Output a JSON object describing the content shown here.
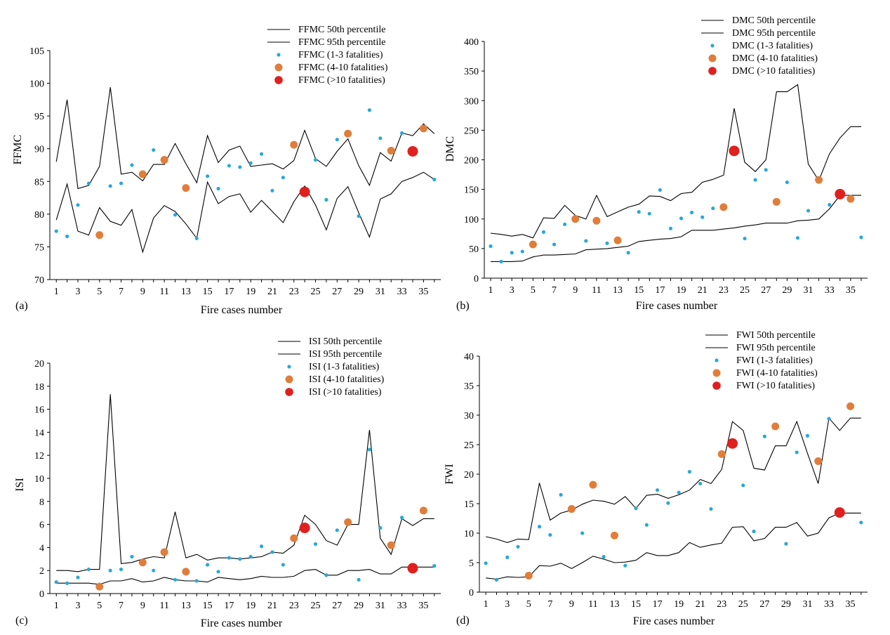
{
  "colors": {
    "p50": "#000000",
    "p95": "#000000",
    "small": "#2aa8d8",
    "medium": "#e07d3a",
    "large": "#e0201e",
    "axis": "#000000"
  },
  "chart_data": [
    {
      "panel": "(a)",
      "type": "line+scatter",
      "xlabel": "Fire cases number",
      "ylabel": "FFMC",
      "xlim": [
        1,
        36
      ],
      "ylim": [
        70,
        105
      ],
      "yticks": [
        70,
        75,
        80,
        85,
        90,
        95,
        100,
        105
      ],
      "xticks": [
        1,
        3,
        5,
        7,
        9,
        11,
        13,
        15,
        17,
        19,
        21,
        23,
        25,
        27,
        29,
        31,
        33,
        35
      ],
      "legend": [
        "FFMC 50th percentile",
        "FFMC 95th percentile",
        "FFMC (1-3 fatalities)",
        "FFMC (4-10 fatalities)",
        "FFMC (>10 fatalities)"
      ],
      "p50": [
        79.1,
        84.6,
        77.4,
        76.8,
        81.0,
        78.9,
        78.3,
        80.7,
        74.2,
        79.4,
        81.3,
        80.4,
        78.5,
        76.3,
        84.9,
        81.6,
        82.7,
        83.1,
        80.3,
        82.1,
        80.4,
        78.7,
        81.9,
        84.3,
        81.4,
        77.6,
        82.4,
        84.2,
        80.2,
        76.5,
        82.3,
        83.1,
        85.0,
        85.6,
        86.4,
        85.3
      ],
      "p95": [
        88.0,
        97.5,
        83.9,
        84.4,
        87.3,
        99.4,
        86.1,
        86.4,
        85.1,
        87.6,
        87.6,
        90.8,
        87.7,
        84.8,
        92.0,
        87.9,
        89.8,
        90.4,
        87.3,
        87.5,
        87.7,
        86.9,
        88.2,
        92.8,
        88.5,
        87.3,
        89.6,
        91.5,
        87.4,
        84.4,
        89.4,
        88.1,
        92.4,
        92.0,
        93.8,
        92.3
      ],
      "small": [
        [
          1,
          77.4
        ],
        [
          2,
          76.6
        ],
        [
          3,
          81.4
        ],
        [
          4,
          84.7
        ],
        [
          6,
          84.3
        ],
        [
          7,
          84.7
        ],
        [
          8,
          87.5
        ],
        [
          10,
          89.8
        ],
        [
          12,
          79.9
        ],
        [
          14,
          76.3
        ],
        [
          15,
          85.8
        ],
        [
          16,
          83.9
        ],
        [
          17,
          87.4
        ],
        [
          18,
          87.2
        ],
        [
          19,
          87.8
        ],
        [
          20,
          89.2
        ],
        [
          21,
          83.6
        ],
        [
          22,
          85.6
        ],
        [
          25,
          88.3
        ],
        [
          26,
          82.2
        ],
        [
          27,
          91.4
        ],
        [
          29,
          79.7
        ],
        [
          30,
          95.9
        ],
        [
          31,
          91.6
        ],
        [
          33,
          92.4
        ],
        [
          36,
          85.3
        ]
      ],
      "medium": [
        [
          5,
          76.8
        ],
        [
          9,
          86.1
        ],
        [
          11,
          88.3
        ],
        [
          13,
          84.0
        ],
        [
          23,
          90.6
        ],
        [
          28,
          92.3
        ],
        [
          32,
          89.7
        ],
        [
          35,
          93.1
        ]
      ],
      "large": [
        [
          24,
          83.4
        ],
        [
          34,
          89.6
        ]
      ]
    },
    {
      "panel": "(b)",
      "type": "line+scatter",
      "xlabel": "Fire cases number",
      "ylabel": "DMC",
      "xlim": [
        1,
        36
      ],
      "ylim": [
        0,
        400
      ],
      "yticks": [
        0,
        50,
        100,
        150,
        200,
        250,
        300,
        350,
        400
      ],
      "xticks": [
        1,
        3,
        5,
        7,
        9,
        11,
        13,
        15,
        17,
        19,
        21,
        23,
        25,
        27,
        29,
        31,
        33,
        35
      ],
      "legend": [
        "DMC 50th percentile",
        "DMC 95th percentile",
        "DMC (1-3 fatalities)",
        "DMC (4-10 fatalities)",
        "DMC (>10 fatalities)"
      ],
      "p50": [
        28,
        28,
        28,
        29,
        36,
        39,
        39,
        40,
        41,
        48,
        49,
        50,
        52,
        54,
        62,
        64,
        66,
        67,
        70,
        81,
        81,
        81,
        83,
        85,
        88,
        90,
        93,
        93,
        93,
        97,
        98,
        100,
        117,
        140,
        140,
        140
      ],
      "p95": [
        76,
        74,
        71,
        74,
        68,
        102,
        101,
        123,
        106,
        100,
        140,
        104,
        112,
        120,
        125,
        139,
        138,
        131,
        143,
        145,
        162,
        167,
        174,
        287,
        196,
        180,
        200,
        315,
        315,
        327,
        193,
        165,
        210,
        237,
        256,
        256
      ],
      "small": [
        [
          1,
          54
        ],
        [
          2,
          28
        ],
        [
          3,
          43
        ],
        [
          4,
          45
        ],
        [
          6,
          78
        ],
        [
          7,
          57
        ],
        [
          8,
          91
        ],
        [
          10,
          63
        ],
        [
          12,
          59
        ],
        [
          14,
          43
        ],
        [
          15,
          112
        ],
        [
          16,
          109
        ],
        [
          17,
          149
        ],
        [
          18,
          84
        ],
        [
          19,
          101
        ],
        [
          20,
          111
        ],
        [
          21,
          103
        ],
        [
          22,
          118
        ],
        [
          25,
          67
        ],
        [
          26,
          166
        ],
        [
          27,
          183
        ],
        [
          29,
          162
        ],
        [
          30,
          68
        ],
        [
          31,
          114
        ],
        [
          33,
          124
        ],
        [
          36,
          69
        ]
      ],
      "medium": [
        [
          5,
          57
        ],
        [
          9,
          100
        ],
        [
          11,
          97
        ],
        [
          13,
          64
        ],
        [
          23,
          120
        ],
        [
          28,
          129
        ],
        [
          32,
          166
        ],
        [
          35,
          134
        ]
      ],
      "large": [
        [
          24,
          215
        ],
        [
          34,
          142
        ]
      ]
    },
    {
      "panel": "(c)",
      "type": "line+scatter",
      "xlabel": "Fire cases number",
      "ylabel": "ISI",
      "xlim": [
        1,
        36
      ],
      "ylim": [
        0,
        20
      ],
      "yticks": [
        0,
        2,
        4,
        6,
        8,
        10,
        12,
        14,
        16,
        18,
        20
      ],
      "xticks": [
        1,
        3,
        5,
        7,
        9,
        11,
        13,
        15,
        17,
        19,
        21,
        23,
        25,
        27,
        29,
        31,
        33,
        35
      ],
      "legend": [
        "ISI 50th percentile",
        "ISI 95th percentile",
        "ISI (1-3 fatalities)",
        "ISI (4-10 fatalities)",
        "ISI (>10 fatalities)"
      ],
      "p50": [
        0.9,
        0.9,
        0.9,
        0.9,
        0.8,
        1.1,
        1.1,
        1.3,
        1.0,
        1.1,
        1.4,
        1.2,
        1.1,
        1.1,
        1.0,
        1.4,
        1.3,
        1.2,
        1.3,
        1.5,
        1.4,
        1.4,
        1.5,
        2.0,
        2.1,
        1.6,
        1.6,
        2.0,
        2.0,
        2.1,
        1.7,
        1.7,
        2.3,
        2.3,
        2.3,
        2.3
      ],
      "p95": [
        2.0,
        2.0,
        1.9,
        2.1,
        2.1,
        17.3,
        2.6,
        2.7,
        3.0,
        3.2,
        3.1,
        7.1,
        3.1,
        3.4,
        2.9,
        3.1,
        3.1,
        3.0,
        3.1,
        3.2,
        3.6,
        3.5,
        4.2,
        6.8,
        6.0,
        4.6,
        4.2,
        6.0,
        6.0,
        14.2,
        4.8,
        3.4,
        6.5,
        5.9,
        6.5,
        6.5
      ],
      "small": [
        [
          1,
          1.0
        ],
        [
          2,
          0.9
        ],
        [
          3,
          1.4
        ],
        [
          4,
          2.1
        ],
        [
          6,
          2.0
        ],
        [
          7,
          2.1
        ],
        [
          8,
          3.2
        ],
        [
          10,
          2.0
        ],
        [
          12,
          1.2
        ],
        [
          14,
          1.1
        ],
        [
          15,
          2.5
        ],
        [
          16,
          1.9
        ],
        [
          17,
          3.1
        ],
        [
          18,
          3.0
        ],
        [
          19,
          3.2
        ],
        [
          20,
          4.1
        ],
        [
          21,
          3.6
        ],
        [
          22,
          2.5
        ],
        [
          25,
          4.3
        ],
        [
          26,
          1.6
        ],
        [
          27,
          5.5
        ],
        [
          29,
          1.2
        ],
        [
          30,
          12.5
        ],
        [
          31,
          5.7
        ],
        [
          33,
          6.6
        ],
        [
          36,
          2.4
        ]
      ],
      "medium": [
        [
          5,
          0.6
        ],
        [
          9,
          2.7
        ],
        [
          11,
          3.6
        ],
        [
          13,
          1.9
        ],
        [
          23,
          4.8
        ],
        [
          28,
          6.2
        ],
        [
          32,
          4.2
        ],
        [
          35,
          7.2
        ]
      ],
      "large": [
        [
          24,
          5.7
        ],
        [
          34,
          2.2
        ]
      ]
    },
    {
      "panel": "(d)",
      "type": "line+scatter",
      "xlabel": "Fire cases number",
      "ylabel": "FWI",
      "xlim": [
        1,
        36
      ],
      "ylim": [
        0,
        40
      ],
      "yticks": [
        0,
        5,
        10,
        15,
        20,
        25,
        30,
        35,
        40
      ],
      "xticks": [
        1,
        3,
        5,
        7,
        9,
        11,
        13,
        15,
        17,
        19,
        21,
        23,
        25,
        27,
        29,
        31,
        33,
        35
      ],
      "legend": [
        "FWI 50th percentile",
        "FWI 95th percentile",
        "FWI (1-3 fatalities)",
        "FWI (4-10 fatalities)",
        "FWI (>10 fatalities)"
      ],
      "p50": [
        2.4,
        2.2,
        2.6,
        2.5,
        2.6,
        4.5,
        4.4,
        4.9,
        4.0,
        5.0,
        6.1,
        5.6,
        5.0,
        5.1,
        5.4,
        6.7,
        6.2,
        6.2,
        6.7,
        8.4,
        7.6,
        8.0,
        8.3,
        11.0,
        11.1,
        8.7,
        9.1,
        11.0,
        11.0,
        11.8,
        9.5,
        10.0,
        12.6,
        13.4,
        13.4,
        13.4
      ],
      "p95": [
        9.4,
        9.0,
        8.4,
        9.0,
        8.9,
        18.5,
        12.2,
        13.4,
        13.9,
        14.9,
        15.6,
        15.4,
        14.9,
        16.2,
        14.2,
        16.4,
        16.6,
        15.9,
        16.5,
        17.3,
        19.1,
        18.4,
        20.8,
        28.9,
        27.4,
        21.0,
        20.7,
        24.8,
        24.8,
        28.9,
        23.5,
        18.4,
        29.5,
        27.4,
        29.5,
        29.5
      ],
      "small": [
        [
          1,
          4.9
        ],
        [
          2,
          2.1
        ],
        [
          3,
          5.9
        ],
        [
          4,
          7.7
        ],
        [
          6,
          11.1
        ],
        [
          7,
          9.7
        ],
        [
          8,
          16.5
        ],
        [
          10,
          10.0
        ],
        [
          12,
          6.0
        ],
        [
          14,
          4.5
        ],
        [
          15,
          14.2
        ],
        [
          16,
          11.4
        ],
        [
          17,
          17.3
        ],
        [
          18,
          15.1
        ],
        [
          19,
          16.9
        ],
        [
          20,
          20.4
        ],
        [
          21,
          18.4
        ],
        [
          22,
          14.1
        ],
        [
          25,
          18.1
        ],
        [
          26,
          10.3
        ],
        [
          27,
          26.4
        ],
        [
          29,
          8.2
        ],
        [
          30,
          23.7
        ],
        [
          31,
          26.5
        ],
        [
          33,
          29.4
        ],
        [
          36,
          11.8
        ]
      ],
      "medium": [
        [
          5,
          2.8
        ],
        [
          9,
          14.1
        ],
        [
          11,
          18.2
        ],
        [
          13,
          9.6
        ],
        [
          23,
          23.4
        ],
        [
          28,
          28.1
        ],
        [
          32,
          22.2
        ],
        [
          35,
          31.5
        ]
      ],
      "large": [
        [
          24,
          25.2
        ],
        [
          34,
          13.5
        ]
      ]
    }
  ]
}
